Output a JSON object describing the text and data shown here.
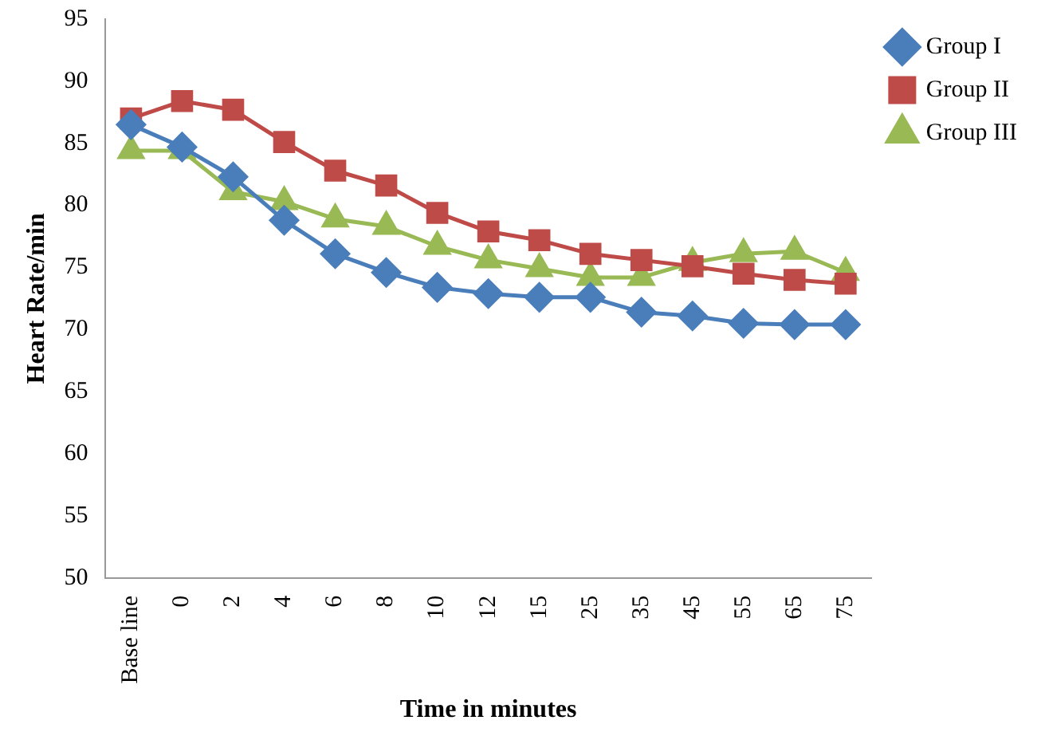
{
  "chart_data": {
    "type": "line",
    "xlabel": "Time in minutes",
    "ylabel": "Heart Rate/min",
    "categories": [
      "Base line",
      "0",
      "2",
      "4",
      "6",
      "8",
      "10",
      "12",
      "15",
      "25",
      "35",
      "45",
      "55",
      "65",
      "75"
    ],
    "series": [
      {
        "name": "Group I",
        "color": "#4a7ebb",
        "marker": "diamond",
        "values": [
          86.5,
          84.7,
          82.3,
          78.8,
          76.1,
          74.6,
          73.4,
          72.9,
          72.6,
          72.6,
          71.4,
          71.1,
          70.5,
          70.4,
          70.4
        ]
      },
      {
        "name": "Group II",
        "color": "#be4b48",
        "marker": "square",
        "values": [
          87,
          88.4,
          87.7,
          85.1,
          82.8,
          81.6,
          79.4,
          77.9,
          77.2,
          76.1,
          75.6,
          75.1,
          74.5,
          74.0,
          73.7
        ]
      },
      {
        "name": "Group III",
        "color": "#98b954",
        "marker": "triangle",
        "values": [
          84.4,
          84.4,
          81.1,
          80.3,
          78.9,
          78.3,
          76.7,
          75.6,
          74.9,
          74.2,
          74.2,
          75.4,
          76.1,
          76.3,
          74.6
        ]
      }
    ],
    "ylim": [
      50,
      95
    ],
    "yticks": [
      50,
      55,
      60,
      65,
      70,
      75,
      80,
      85,
      90,
      95
    ],
    "grid": false,
    "legend": "top right"
  }
}
